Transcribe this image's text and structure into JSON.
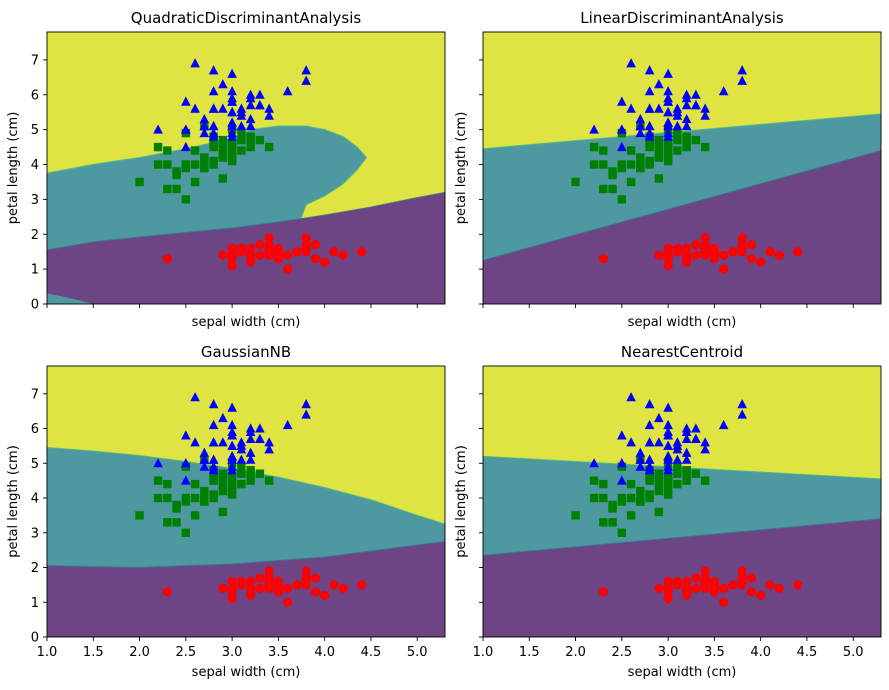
{
  "colors": {
    "region_class_0": "#6d4584",
    "region_class_1": "#4e99a0",
    "region_class_2": "#dfe442",
    "points_class_0": "#ff0000",
    "points_class_1": "#008000",
    "points_class_2": "#0000ff",
    "axis": "#000000"
  },
  "chart_data": [
    {
      "type": "scatter",
      "title": "QuadraticDiscriminantAnalysis",
      "xlabel": "sepal width (cm)",
      "ylabel": "petal length (cm)",
      "xlim": [
        1.0,
        5.3
      ],
      "ylim": [
        0,
        7.8
      ],
      "boundaries": {
        "lower": {
          "x": [
            1.0,
            1.5,
            2.0,
            2.5,
            3.0,
            3.5,
            4.0,
            4.5,
            5.0,
            5.3
          ],
          "y": [
            1.55,
            1.78,
            1.92,
            2.05,
            2.18,
            2.35,
            2.55,
            2.78,
            3.05,
            3.2
          ]
        },
        "upper": {
          "x": [
            1.0,
            1.5,
            2.0,
            2.5,
            3.0,
            3.2,
            3.5,
            3.8,
            4.0,
            4.2,
            4.35,
            4.45,
            4.35,
            4.2,
            4.0,
            3.8,
            3.75
          ],
          "y": [
            3.75,
            4.0,
            4.2,
            4.45,
            4.75,
            5.0,
            5.1,
            5.1,
            5.0,
            4.8,
            4.5,
            4.2,
            3.85,
            3.45,
            3.1,
            2.85,
            2.5
          ]
        },
        "corner": {
          "x": [
            1.0,
            1.2,
            1.5
          ],
          "y": [
            0.3,
            0.2,
            0.0
          ]
        }
      },
      "show_x_ticklabels": false,
      "show_y_ticklabels": true
    },
    {
      "type": "scatter",
      "title": "LinearDiscriminantAnalysis",
      "xlabel": "sepal width (cm)",
      "ylabel": "petal length (cm)",
      "xlim": [
        1.0,
        5.3
      ],
      "ylim": [
        0,
        7.8
      ],
      "boundaries": {
        "lower": {
          "x": [
            1.0,
            5.3
          ],
          "y": [
            1.25,
            4.4
          ]
        },
        "upper": {
          "x": [
            1.0,
            5.3
          ],
          "y": [
            4.45,
            5.45
          ]
        }
      },
      "show_x_ticklabels": false,
      "show_y_ticklabels": false
    },
    {
      "type": "scatter",
      "title": "GaussianNB",
      "xlabel": "sepal width (cm)",
      "ylabel": "petal length (cm)",
      "xlim": [
        1.0,
        5.3
      ],
      "ylim": [
        0,
        7.8
      ],
      "boundaries": {
        "lower": {
          "x": [
            1.0,
            2.0,
            3.0,
            4.0,
            5.3
          ],
          "y": [
            2.05,
            2.0,
            2.1,
            2.3,
            2.75
          ]
        },
        "upper": {
          "x": [
            1.0,
            1.5,
            2.0,
            2.5,
            3.0,
            3.5,
            4.0,
            4.5,
            5.0,
            5.3
          ],
          "y": [
            5.45,
            5.35,
            5.22,
            5.05,
            4.85,
            4.6,
            4.3,
            3.95,
            3.5,
            3.25
          ]
        }
      },
      "show_x_ticklabels": true,
      "show_y_ticklabels": true
    },
    {
      "type": "scatter",
      "title": "NearestCentroid",
      "xlabel": "sepal width (cm)",
      "ylabel": "petal length (cm)",
      "xlim": [
        1.0,
        5.3
      ],
      "ylim": [
        0,
        7.8
      ],
      "boundaries": {
        "lower": {
          "x": [
            1.0,
            5.3
          ],
          "y": [
            2.35,
            3.4
          ]
        },
        "upper": {
          "x": [
            1.0,
            5.3
          ],
          "y": [
            5.2,
            4.55
          ]
        }
      },
      "show_x_ticklabels": true,
      "show_y_ticklabels": false
    }
  ],
  "axes": {
    "x_ticks": [
      1.0,
      1.5,
      2.0,
      2.5,
      3.0,
      3.5,
      4.0,
      4.5,
      5.0
    ],
    "x_tick_labels": [
      "1.0",
      "1.5",
      "2.0",
      "2.5",
      "3.0",
      "3.5",
      "4.0",
      "4.5",
      "5.0"
    ],
    "y_ticks": [
      0,
      1,
      2,
      3,
      4,
      5,
      6,
      7
    ],
    "y_tick_labels": [
      "0",
      "1",
      "2",
      "3",
      "4",
      "5",
      "6",
      "7"
    ]
  },
  "points": {
    "class_0": {
      "marker": "circle",
      "x": [
        3.5,
        3.0,
        3.2,
        3.1,
        3.6,
        3.9,
        3.4,
        3.4,
        2.9,
        3.1,
        3.7,
        3.4,
        3.0,
        3.0,
        4.0,
        4.4,
        3.9,
        3.5,
        3.8,
        3.8,
        3.4,
        3.7,
        3.6,
        3.3,
        3.4,
        3.0,
        3.4,
        3.5,
        3.4,
        3.2,
        3.1,
        3.4,
        4.1,
        4.2,
        3.1,
        3.2,
        3.5,
        3.6,
        3.0,
        3.4,
        3.5,
        2.3,
        3.2,
        3.5,
        3.8,
        3.0,
        3.8,
        3.2,
        3.7,
        3.3
      ],
      "y": [
        1.4,
        1.4,
        1.3,
        1.5,
        1.4,
        1.7,
        1.4,
        1.5,
        1.4,
        1.5,
        1.5,
        1.6,
        1.4,
        1.1,
        1.2,
        1.5,
        1.3,
        1.4,
        1.7,
        1.5,
        1.7,
        1.5,
        1.0,
        1.7,
        1.9,
        1.6,
        1.6,
        1.5,
        1.4,
        1.6,
        1.6,
        1.5,
        1.5,
        1.4,
        1.5,
        1.2,
        1.3,
        1.4,
        1.3,
        1.5,
        1.3,
        1.3,
        1.3,
        1.6,
        1.9,
        1.4,
        1.6,
        1.4,
        1.5,
        1.4
      ]
    },
    "class_1": {
      "marker": "square",
      "x": [
        3.2,
        3.2,
        3.1,
        2.3,
        2.8,
        2.8,
        3.3,
        2.4,
        2.9,
        2.7,
        2.0,
        3.0,
        2.2,
        2.9,
        2.9,
        3.1,
        3.0,
        2.7,
        2.2,
        2.5,
        3.2,
        2.8,
        2.5,
        2.8,
        2.9,
        3.0,
        2.8,
        3.0,
        2.9,
        2.6,
        2.4,
        2.4,
        2.7,
        2.7,
        3.0,
        3.4,
        3.1,
        2.3,
        3.0,
        2.5,
        2.6,
        3.0,
        2.6,
        2.3,
        2.7,
        3.0,
        2.9,
        2.9,
        2.5,
        2.8
      ],
      "y": [
        4.7,
        4.5,
        4.9,
        4.0,
        4.6,
        4.5,
        4.7,
        3.3,
        4.6,
        3.9,
        3.5,
        4.2,
        4.0,
        4.7,
        3.6,
        4.4,
        4.5,
        4.1,
        4.5,
        3.9,
        4.8,
        4.0,
        4.9,
        4.7,
        4.3,
        4.4,
        4.8,
        5.0,
        4.5,
        3.5,
        3.8,
        3.7,
        3.9,
        5.1,
        4.5,
        4.5,
        4.7,
        4.4,
        4.1,
        4.0,
        4.4,
        4.6,
        4.0,
        3.3,
        4.2,
        4.2,
        4.2,
        4.3,
        3.0,
        4.1
      ]
    },
    "class_2": {
      "marker": "triangle",
      "x": [
        3.3,
        2.7,
        3.0,
        2.9,
        3.0,
        3.0,
        2.5,
        2.9,
        2.5,
        3.6,
        3.2,
        2.7,
        3.0,
        2.5,
        2.8,
        3.2,
        3.0,
        3.8,
        2.6,
        2.2,
        3.2,
        2.8,
        2.8,
        2.7,
        3.3,
        3.2,
        2.8,
        3.0,
        2.8,
        3.0,
        2.8,
        3.8,
        2.8,
        2.8,
        2.6,
        3.0,
        3.4,
        3.1,
        3.0,
        3.1,
        3.1,
        3.1,
        2.7,
        3.2,
        3.3,
        3.0,
        2.5,
        3.0,
        3.4,
        3.0
      ],
      "y": [
        6.0,
        5.1,
        5.9,
        5.6,
        5.8,
        6.6,
        4.5,
        6.3,
        5.8,
        6.1,
        5.1,
        5.3,
        5.5,
        5.0,
        5.1,
        5.3,
        5.5,
        6.7,
        6.9,
        5.0,
        5.7,
        4.9,
        6.7,
        4.9,
        5.7,
        6.0,
        4.8,
        4.9,
        5.6,
        5.8,
        6.1,
        6.4,
        5.6,
        5.1,
        5.6,
        6.1,
        5.6,
        5.5,
        4.8,
        5.4,
        5.6,
        5.1,
        5.1,
        5.9,
        5.7,
        5.2,
        5.0,
        5.2,
        5.4,
        5.1
      ]
    }
  }
}
